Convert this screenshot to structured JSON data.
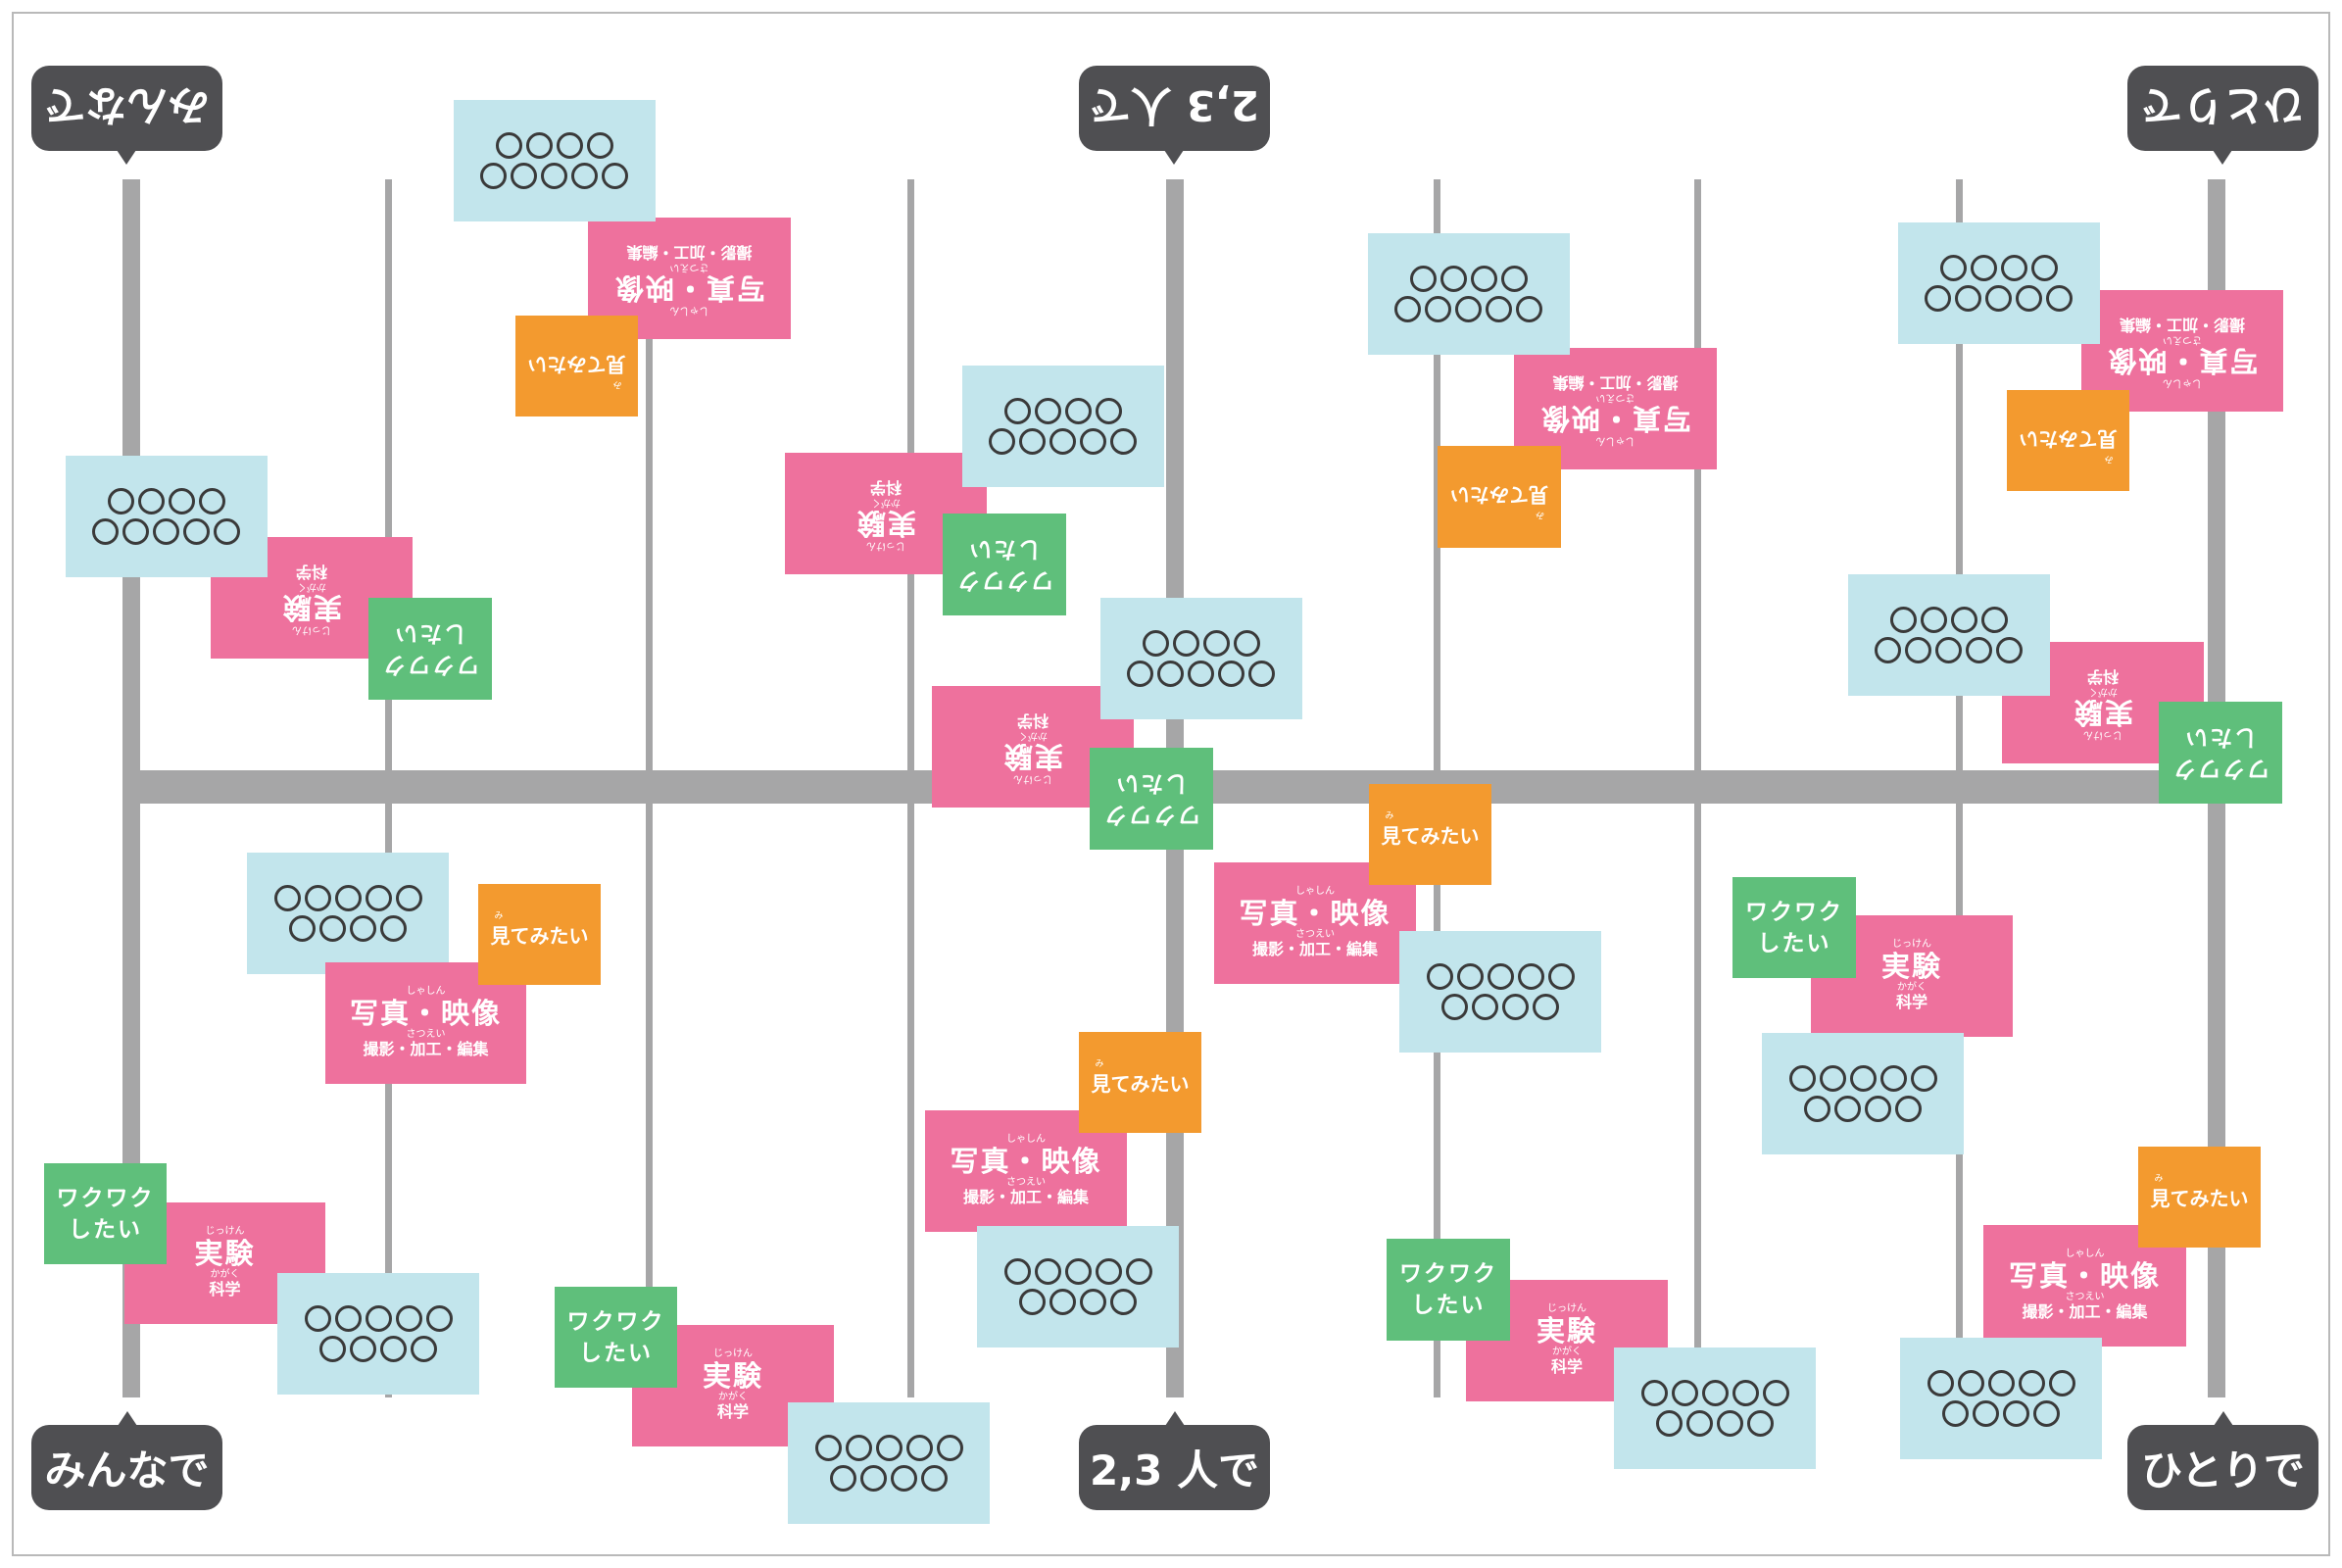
{
  "frame_labels": {
    "left": "みんなで",
    "center": "2,3 人で",
    "right": "ひとりで"
  },
  "card_text": {
    "circles": "○○○○○○○○○",
    "photo_title": "写真・映像",
    "photo_ruby": "しゃしん",
    "photo_sub": "撮影・加工・編集",
    "photo_sub_ruby": "さつえい",
    "exp_title": "実験",
    "exp_ruby": "じっけん",
    "exp_sub": "科学",
    "exp_sub_ruby": "かがく",
    "green_line1": "ワクワク",
    "green_line2": "したい",
    "orange": "見てみたい"
  },
  "colors": {
    "tag": "#4f4f52",
    "axis": "#a6a6a7",
    "blue_card": "#c2e5ec",
    "pink_card": "#ee719d",
    "green_card": "#5fbf7b",
    "orange_card": "#f39a2f"
  }
}
